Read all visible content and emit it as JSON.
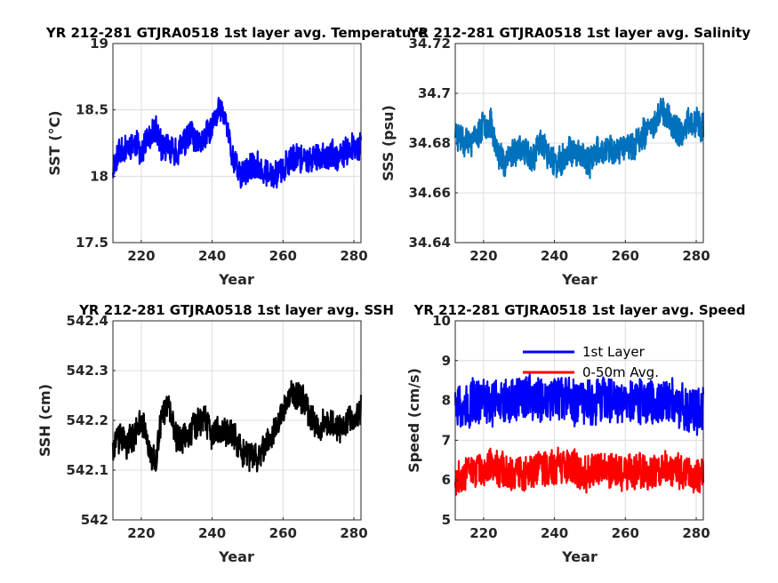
{
  "figure": {
    "panels": [
      {
        "id": "sst",
        "title": "YR 212-281 GTJRA0518 1st layer avg. Temperature",
        "xlabel": "Year",
        "ylabel": "SST (°C)",
        "xlim": [
          212,
          282
        ],
        "ylim": [
          17.5,
          19
        ],
        "xticks": [
          220,
          240,
          260,
          280
        ],
        "yticks": [
          17.5,
          18,
          18.5,
          19
        ],
        "yticklabels": [
          "17.5",
          "18",
          "18.5",
          "19"
        ],
        "grid": true,
        "series": [
          {
            "color": "#0000ff",
            "keyframes": [
              [
                212,
                18.08
              ],
              [
                214,
                18.2
              ],
              [
                216,
                18.22
              ],
              [
                218,
                18.25
              ],
              [
                220,
                18.2
              ],
              [
                222,
                18.27
              ],
              [
                224,
                18.35
              ],
              [
                226,
                18.22
              ],
              [
                228,
                18.2
              ],
              [
                230,
                18.18
              ],
              [
                232,
                18.25
              ],
              [
                234,
                18.32
              ],
              [
                236,
                18.22
              ],
              [
                238,
                18.3
              ],
              [
                240,
                18.36
              ],
              [
                242,
                18.52
              ],
              [
                244,
                18.4
              ],
              [
                246,
                18.12
              ],
              [
                248,
                18.02
              ],
              [
                250,
                18.05
              ],
              [
                252,
                18.08
              ],
              [
                254,
                18.05
              ],
              [
                256,
                18.0
              ],
              [
                258,
                18.03
              ],
              [
                260,
                18.05
              ],
              [
                262,
                18.12
              ],
              [
                264,
                18.16
              ],
              [
                266,
                18.12
              ],
              [
                268,
                18.12
              ],
              [
                270,
                18.17
              ],
              [
                272,
                18.14
              ],
              [
                274,
                18.16
              ],
              [
                276,
                18.12
              ],
              [
                278,
                18.2
              ],
              [
                280,
                18.22
              ],
              [
                282,
                18.22
              ]
            ],
            "noise": 0.1,
            "seed": 11
          }
        ]
      },
      {
        "id": "sss",
        "title": "YR 212-281 GTJRA0518 1st layer avg. Salinity",
        "xlabel": "Year",
        "ylabel": "SSS (psu)",
        "xlim": [
          212,
          282
        ],
        "ylim": [
          34.64,
          34.72
        ],
        "xticks": [
          220,
          240,
          260,
          280
        ],
        "yticks": [
          34.64,
          34.66,
          34.68,
          34.7,
          34.72
        ],
        "yticklabels": [
          "34.64",
          "34.66",
          "34.68",
          "34.7",
          "34.72"
        ],
        "grid": true,
        "series": [
          {
            "color": "#0072bd",
            "keyframes": [
              [
                212,
                34.684
              ],
              [
                214,
                34.682
              ],
              [
                216,
                34.68
              ],
              [
                218,
                34.682
              ],
              [
                220,
                34.688
              ],
              [
                222,
                34.688
              ],
              [
                224,
                34.676
              ],
              [
                226,
                34.672
              ],
              [
                228,
                34.676
              ],
              [
                230,
                34.678
              ],
              [
                232,
                34.676
              ],
              [
                234,
                34.674
              ],
              [
                236,
                34.68
              ],
              [
                238,
                34.676
              ],
              [
                240,
                34.672
              ],
              [
                242,
                34.672
              ],
              [
                244,
                34.678
              ],
              [
                246,
                34.676
              ],
              [
                248,
                34.674
              ],
              [
                250,
                34.672
              ],
              [
                252,
                34.678
              ],
              [
                254,
                34.676
              ],
              [
                256,
                34.678
              ],
              [
                258,
                34.676
              ],
              [
                260,
                34.68
              ],
              [
                262,
                34.678
              ],
              [
                264,
                34.682
              ],
              [
                266,
                34.684
              ],
              [
                268,
                34.688
              ],
              [
                270,
                34.694
              ],
              [
                272,
                34.69
              ],
              [
                274,
                34.686
              ],
              [
                276,
                34.684
              ],
              [
                278,
                34.688
              ],
              [
                280,
                34.688
              ],
              [
                282,
                34.686
              ]
            ],
            "noise": 0.0055,
            "seed": 23
          }
        ]
      },
      {
        "id": "ssh",
        "title": "YR 212-281 GTJRA0518 1st layer avg. SSH",
        "xlabel": "Year",
        "ylabel": "SSH (cm)",
        "xlim": [
          212,
          282
        ],
        "ylim": [
          542,
          542.4
        ],
        "xticks": [
          220,
          240,
          260,
          280
        ],
        "yticks": [
          542,
          542.1,
          542.2,
          542.3,
          542.4
        ],
        "yticklabels": [
          "542",
          "542.1",
          "542.2",
          "542.3",
          "542.4"
        ],
        "grid": true,
        "series": [
          {
            "color": "#000000",
            "keyframes": [
              [
                212,
                542.15
              ],
              [
                214,
                542.17
              ],
              [
                216,
                542.15
              ],
              [
                218,
                542.17
              ],
              [
                220,
                542.2
              ],
              [
                222,
                542.15
              ],
              [
                224,
                542.11
              ],
              [
                226,
                542.22
              ],
              [
                228,
                542.22
              ],
              [
                230,
                542.16
              ],
              [
                232,
                542.17
              ],
              [
                234,
                542.18
              ],
              [
                236,
                542.2
              ],
              [
                238,
                542.2
              ],
              [
                240,
                542.17
              ],
              [
                242,
                542.18
              ],
              [
                244,
                542.18
              ],
              [
                246,
                542.17
              ],
              [
                248,
                542.14
              ],
              [
                250,
                542.13
              ],
              [
                252,
                542.12
              ],
              [
                254,
                542.14
              ],
              [
                256,
                542.17
              ],
              [
                258,
                542.18
              ],
              [
                260,
                542.22
              ],
              [
                262,
                542.26
              ],
              [
                264,
                542.25
              ],
              [
                266,
                542.24
              ],
              [
                268,
                542.2
              ],
              [
                270,
                542.19
              ],
              [
                272,
                542.2
              ],
              [
                274,
                542.2
              ],
              [
                276,
                542.18
              ],
              [
                278,
                542.2
              ],
              [
                280,
                542.2
              ],
              [
                282,
                542.22
              ]
            ],
            "noise": 0.028,
            "seed": 37
          }
        ]
      },
      {
        "id": "speed",
        "title": "YR 212-281 GTJRA0518 1st layer avg. Speed",
        "xlabel": "Year",
        "ylabel": "Speed (cm/s)",
        "xlim": [
          212,
          282
        ],
        "ylim": [
          5,
          10
        ],
        "xticks": [
          220,
          240,
          260,
          280
        ],
        "yticks": [
          5,
          6,
          7,
          8,
          9,
          10
        ],
        "yticklabels": [
          "5",
          "6",
          "7",
          "8",
          "9",
          "10"
        ],
        "grid": true,
        "legend": {
          "placement": "top",
          "entries": [
            "1st Layer",
            "0-50m Avg."
          ]
        },
        "series": [
          {
            "name": "1st Layer",
            "color": "#0000ff",
            "keyframes": [
              [
                212,
                7.8
              ],
              [
                216,
                7.9
              ],
              [
                220,
                8.0
              ],
              [
                224,
                8.0
              ],
              [
                228,
                8.0
              ],
              [
                232,
                8.1
              ],
              [
                236,
                8.0
              ],
              [
                240,
                8.0
              ],
              [
                244,
                8.0
              ],
              [
                248,
                7.9
              ],
              [
                252,
                8.1
              ],
              [
                256,
                8.0
              ],
              [
                260,
                7.9
              ],
              [
                264,
                8.0
              ],
              [
                268,
                7.9
              ],
              [
                272,
                8.0
              ],
              [
                276,
                7.8
              ],
              [
                280,
                7.8
              ],
              [
                282,
                7.8
              ]
            ],
            "noise": 0.55,
            "seed": 51
          },
          {
            "name": "0-50m Avg.",
            "color": "#ff0000",
            "keyframes": [
              [
                212,
                6.1
              ],
              [
                216,
                6.2
              ],
              [
                220,
                6.3
              ],
              [
                224,
                6.3
              ],
              [
                228,
                6.2
              ],
              [
                232,
                6.2
              ],
              [
                236,
                6.3
              ],
              [
                240,
                6.3
              ],
              [
                244,
                6.3
              ],
              [
                248,
                6.2
              ],
              [
                252,
                6.3
              ],
              [
                256,
                6.3
              ],
              [
                260,
                6.2
              ],
              [
                264,
                6.3
              ],
              [
                268,
                6.2
              ],
              [
                272,
                6.3
              ],
              [
                276,
                6.2
              ],
              [
                280,
                6.1
              ],
              [
                282,
                6.1
              ]
            ],
            "noise": 0.42,
            "seed": 67
          }
        ]
      }
    ]
  }
}
